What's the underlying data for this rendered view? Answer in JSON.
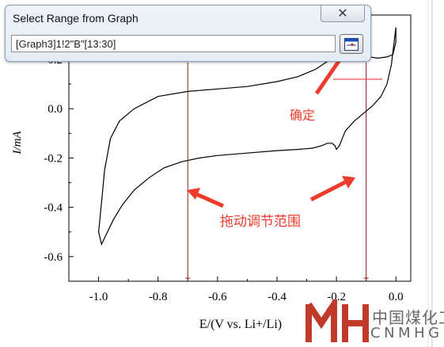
{
  "dialog": {
    "title": "Select Range from Graph",
    "close_glyph": "✕",
    "range_value": "[Graph3]1!2\"B\"[13:30]",
    "select_button_icon": "range-select-icon"
  },
  "annotations": {
    "confirm_label": "确定",
    "drag_label": "拖动调节范围",
    "color": "#ef3b2c"
  },
  "watermark": {
    "cn": "中国煤化工",
    "en": "CNMHG"
  },
  "chart_data": {
    "type": "line",
    "xlabel": "E/(V vs. Li+/Li)",
    "ylabel": "I/mA",
    "xlim": [
      -1.1,
      0.05
    ],
    "ylim": [
      -0.7,
      0.38
    ],
    "x_ticks": [
      -1.0,
      -0.8,
      -0.6,
      -0.4,
      -0.2,
      0.0
    ],
    "x_tick_labels": [
      "-1.0",
      "-0.8",
      "-0.6",
      "-0.4",
      "-0.2",
      "0.0"
    ],
    "y_ticks": [
      -0.6,
      -0.4,
      -0.2,
      0.0,
      0.2
    ],
    "y_tick_labels": [
      "-0.6",
      "-0.4",
      "-0.2",
      "0.0",
      "0.2"
    ],
    "range_markers_x": [
      -0.7,
      -0.1
    ],
    "series": [
      {
        "x": [
          0.0,
          0.0,
          -0.01,
          -0.03,
          -0.06,
          -0.09,
          -0.12,
          -0.15,
          -0.17,
          -0.19,
          -0.22,
          -0.27,
          -0.33,
          -0.4,
          -0.5,
          -0.6,
          -0.7,
          -0.8,
          -0.88,
          -0.93,
          -0.96,
          -0.98,
          -0.99,
          -1.0,
          -0.99,
          -0.97,
          -0.95,
          -0.92,
          -0.88,
          -0.83,
          -0.78,
          -0.72,
          -0.66,
          -0.6,
          -0.5,
          -0.4,
          -0.33,
          -0.28,
          -0.25,
          -0.23,
          -0.215,
          -0.205,
          -0.2,
          -0.19,
          -0.17,
          -0.14,
          -0.11,
          -0.08,
          -0.05,
          -0.03,
          -0.015,
          0.0
        ],
        "y": [
          0.33,
          0.27,
          0.22,
          0.21,
          0.205,
          0.21,
          0.22,
          0.24,
          0.24,
          0.24,
          0.2,
          0.16,
          0.13,
          0.11,
          0.09,
          0.08,
          0.07,
          0.05,
          0.0,
          -0.05,
          -0.12,
          -0.25,
          -0.38,
          -0.5,
          -0.55,
          -0.5,
          -0.45,
          -0.39,
          -0.33,
          -0.28,
          -0.24,
          -0.215,
          -0.2,
          -0.19,
          -0.18,
          -0.17,
          -0.165,
          -0.16,
          -0.15,
          -0.14,
          -0.14,
          -0.15,
          -0.165,
          -0.15,
          -0.09,
          -0.05,
          -0.02,
          0.01,
          0.05,
          0.1,
          0.18,
          0.33
        ]
      }
    ]
  }
}
